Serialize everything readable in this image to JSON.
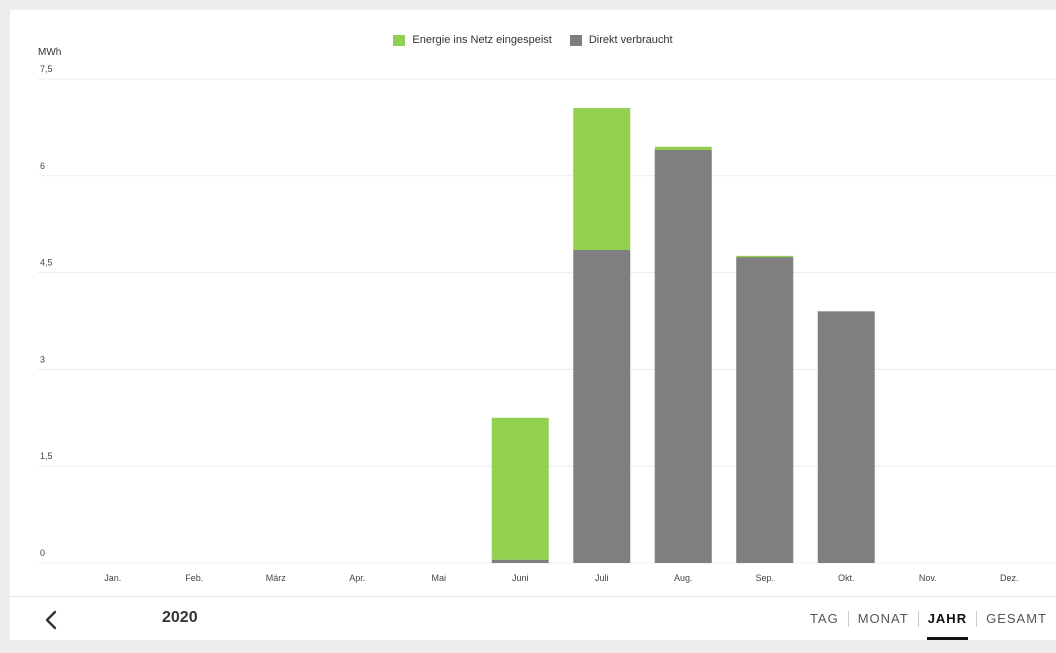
{
  "chart_data": {
    "type": "bar",
    "stacked": true,
    "ylabel": "MWh",
    "categories": [
      "Jan.",
      "Feb.",
      "März",
      "Apr.",
      "Mai",
      "Juni",
      "Juli",
      "Aug.",
      "Sep.",
      "Okt.",
      "Nov.",
      "Dez."
    ],
    "y_ticks": [
      "0",
      "1,5",
      "3",
      "4,5",
      "6",
      "7,5"
    ],
    "ylim": [
      0,
      7.5
    ],
    "grid": true,
    "legend_position": "top-center",
    "series": [
      {
        "name": "Direkt verbraucht",
        "color": "#7f7f7f",
        "values": [
          0,
          0,
          0,
          0,
          0,
          0.05,
          4.85,
          6.4,
          4.74,
          3.9,
          0,
          0
        ]
      },
      {
        "name": "Energie ins Netz eingespeist",
        "color": "#92d050",
        "values": [
          0,
          0,
          0,
          0,
          0,
          2.2,
          2.2,
          0.05,
          0.02,
          0,
          0,
          0
        ]
      }
    ]
  },
  "legend": [
    {
      "label": "Energie ins Netz eingespeist",
      "color": "#92d050"
    },
    {
      "label": "Direkt verbraucht",
      "color": "#7f7f7f"
    }
  ],
  "footer": {
    "back_icon": "chevron-left-icon",
    "year": "2020",
    "tabs": [
      {
        "label": "TAG",
        "active": false
      },
      {
        "label": "MONAT",
        "active": false
      },
      {
        "label": "JAHR",
        "active": true
      },
      {
        "label": "GESAMT",
        "active": false
      }
    ]
  }
}
